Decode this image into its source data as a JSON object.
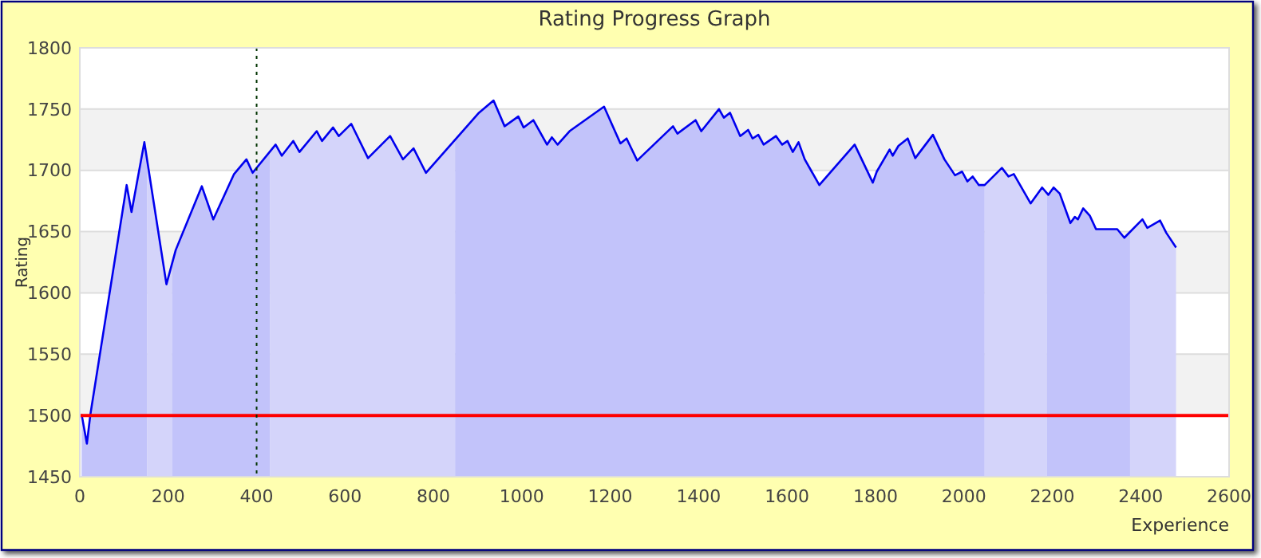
{
  "chart_data": {
    "type": "area",
    "title": "Rating Progress Graph",
    "xlabel": "Experience",
    "ylabel": "Rating",
    "xlim": [
      0,
      2600
    ],
    "xticks": [
      0,
      200,
      400,
      600,
      800,
      1000,
      1200,
      1400,
      1600,
      1800,
      2000,
      2200,
      2400,
      2600
    ],
    "ylim": [
      1450,
      1800
    ],
    "yticks": [
      1450,
      1500,
      1550,
      1600,
      1650,
      1700,
      1750,
      1800
    ],
    "grid": "y",
    "series": [
      {
        "color": "#0000ee",
        "x": [
          4,
          16,
          24,
          106,
          117,
          146,
          196,
          217,
          276,
          302,
          349,
          377,
          391,
          443,
          457,
          483,
          497,
          536,
          548,
          573,
          586,
          614,
          652,
          702,
          731,
          755,
          783,
          903,
          936,
          961,
          992,
          1004,
          1026,
          1057,
          1068,
          1081,
          1108,
          1186,
          1223,
          1237,
          1261,
          1342,
          1352,
          1393,
          1406,
          1446,
          1457,
          1471,
          1494,
          1512,
          1522,
          1535,
          1547,
          1575,
          1589,
          1601,
          1613,
          1626,
          1640,
          1673,
          1697,
          1753,
          1794,
          1803,
          1832,
          1839,
          1852,
          1873,
          1890,
          1930,
          1956,
          1980,
          1996,
          2008,
          2020,
          2034,
          2047,
          2086,
          2101,
          2113,
          2151,
          2177,
          2191,
          2203,
          2217,
          2241,
          2251,
          2258,
          2270,
          2285,
          2299,
          2347,
          2363,
          2404,
          2415,
          2444,
          2458,
          2480
        ],
        "values": [
          1501,
          1477,
          1501,
          1688,
          1666,
          1723,
          1607,
          1635,
          1687,
          1660,
          1697,
          1709,
          1698,
          1721,
          1712,
          1724,
          1715,
          1732,
          1724,
          1735,
          1728,
          1738,
          1710,
          1728,
          1709,
          1718,
          1698,
          1747,
          1757,
          1736,
          1744,
          1735,
          1741,
          1721,
          1727,
          1721,
          1732,
          1752,
          1722,
          1726,
          1708,
          1736,
          1730,
          1741,
          1732,
          1750,
          1743,
          1747,
          1728,
          1733,
          1726,
          1729,
          1721,
          1728,
          1721,
          1724,
          1715,
          1723,
          1709,
          1688,
          1698,
          1721,
          1690,
          1699,
          1717,
          1712,
          1720,
          1726,
          1710,
          1729,
          1709,
          1696,
          1699,
          1691,
          1695,
          1688,
          1688,
          1702,
          1695,
          1697,
          1673,
          1686,
          1680,
          1686,
          1681,
          1657,
          1662,
          1660,
          1669,
          1663,
          1652,
          1652,
          1645,
          1660,
          1653,
          1659,
          1649,
          1637
        ]
      }
    ],
    "bands": [
      {
        "axis": "x",
        "from": 0,
        "to": 152,
        "color": "#cfd0fb"
      },
      {
        "axis": "x",
        "from": 152,
        "to": 209,
        "color": "#e2e2fb"
      },
      {
        "axis": "x",
        "from": 209,
        "to": 430,
        "color": "#cfd0fb"
      },
      {
        "axis": "x",
        "from": 430,
        "to": 849,
        "color": "#e2e2fb"
      },
      {
        "axis": "x",
        "from": 849,
        "to": 2047,
        "color": "#cfd0fb"
      },
      {
        "axis": "x",
        "from": 2047,
        "to": 2188,
        "color": "#e2e2fb"
      },
      {
        "axis": "x",
        "from": 2188,
        "to": 2376,
        "color": "#cfd0fb"
      },
      {
        "axis": "x",
        "from": 2376,
        "to": 2481,
        "color": "#e2e2fb"
      }
    ],
    "ref_lines": [
      {
        "axis": "y",
        "value": 1500,
        "color": "#ff0000",
        "line_style": "solid"
      },
      {
        "axis": "x",
        "value": 400,
        "color": "#003300",
        "line_style": "dotted"
      }
    ]
  }
}
